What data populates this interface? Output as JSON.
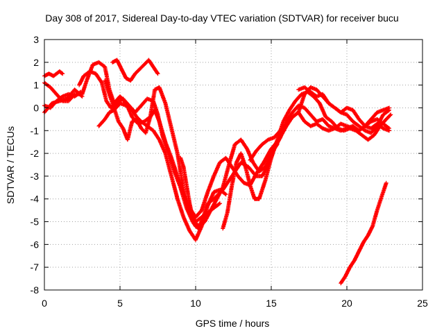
{
  "chart_data": {
    "type": "scatter",
    "title": "Day 308 of 2017, Sidereal Day-to-day VTEC variation (SDTVAR) for receiver bucu",
    "xlabel": "GPS time / hours",
    "ylabel": "SDTVAR / TECUs",
    "xlim": [
      0,
      25
    ],
    "ylim": [
      -8,
      3
    ],
    "xticks": [
      "0",
      "5",
      "10",
      "15",
      "20",
      "25"
    ],
    "yticks": [
      "-8",
      "-7",
      "-6",
      "-5",
      "-4",
      "-3",
      "-2",
      "-1",
      "0",
      "1",
      "2",
      "3"
    ],
    "grid": true,
    "marker": "+",
    "color": "#ff0000",
    "series": [
      {
        "x": [
          0,
          0.3,
          0.6,
          1.0,
          1.2
        ],
        "y": [
          1.4,
          1.5,
          1.4,
          1.6,
          1.5
        ]
      },
      {
        "x": [
          0,
          0.4,
          0.8,
          1.2,
          1.6,
          2.0,
          2.4
        ],
        "y": [
          0.1,
          0.0,
          0.3,
          0.5,
          0.6,
          0.5,
          0.7
        ]
      },
      {
        "x": [
          0,
          0.5,
          1.0,
          1.5,
          2.0,
          2.5
        ],
        "y": [
          -0.2,
          0.2,
          0.3,
          0.4,
          0.8,
          0.5
        ]
      },
      {
        "x": [
          0,
          0.4,
          0.8,
          1.2,
          1.6,
          2.0,
          2.5
        ],
        "y": [
          1.1,
          0.9,
          0.6,
          0.3,
          0.3,
          0.6,
          0.6
        ]
      },
      {
        "x": [
          2.3,
          2.6,
          3.0,
          3.4,
          3.8,
          4.1,
          4.4,
          4.8,
          5.2,
          5.6,
          6.0,
          6.4,
          6.8,
          7.2,
          7.5,
          7.8,
          8.2,
          8.6,
          9.0,
          9.4,
          9.8,
          10.0,
          10.2,
          10.5,
          10.8,
          11.2,
          11.5,
          11.8,
          12.2,
          12.6,
          13.0,
          13.5,
          14.0,
          14.4,
          14.8,
          15.2,
          15.6,
          16.0,
          16.4,
          16.8,
          17.2,
          17.6,
          18.0,
          18.4,
          18.8,
          19.2,
          19.6,
          20.0,
          20.4,
          20.8,
          21.2,
          21.6,
          22.0,
          22.4,
          22.8
        ],
        "y": [
          1.0,
          1.4,
          1.6,
          1.5,
          1.1,
          0.3,
          0.0,
          0.2,
          0.4,
          0.1,
          -0.2,
          0.1,
          0.4,
          0.3,
          -0.3,
          -1.2,
          -2.0,
          -2.8,
          -3.5,
          -4.4,
          -5.0,
          -5.2,
          -5.3,
          -4.8,
          -4.2,
          -4.0,
          -3.8,
          -3.6,
          -3.2,
          -2.8,
          -2.4,
          -2.6,
          -3.0,
          -3.0,
          -2.5,
          -1.8,
          -1.3,
          -0.6,
          -0.2,
          0.1,
          0.0,
          -0.3,
          -0.6,
          -0.5,
          -0.8,
          -0.9,
          -0.7,
          -0.8,
          -0.9,
          -1.0,
          -0.8,
          -0.9,
          -0.7,
          -0.9,
          -1.0
        ]
      },
      {
        "x": [
          2.5,
          2.8,
          3.2,
          3.6,
          4.0,
          4.3,
          4.6,
          5.0,
          5.4,
          5.8,
          6.2,
          6.6,
          7.0,
          7.3,
          7.6,
          8.0,
          8.4,
          8.8,
          9.2,
          9.6,
          10.0,
          10.4,
          10.8,
          11.2,
          11.6,
          12.0,
          12.4,
          12.8,
          13.2,
          13.6,
          14.0,
          14.5,
          15.0,
          15.5,
          16.0,
          16.4,
          16.8,
          17.2,
          17.6,
          18.0,
          18.4,
          18.8,
          19.2,
          19.6,
          20.0,
          20.4,
          20.8,
          21.2,
          21.6,
          22.0,
          22.4,
          22.8
        ],
        "y": [
          0.6,
          1.2,
          1.9,
          2.0,
          1.8,
          0.8,
          0.2,
          0.5,
          0.2,
          -0.4,
          -0.7,
          -0.6,
          -0.4,
          -0.1,
          -0.6,
          -1.5,
          -2.2,
          -3.0,
          -3.8,
          -4.4,
          -4.8,
          -4.5,
          -3.7,
          -3.0,
          -2.4,
          -2.2,
          -2.6,
          -3.0,
          -3.3,
          -3.4,
          -2.9,
          -2.4,
          -1.8,
          -1.4,
          -0.8,
          -0.4,
          -0.2,
          -0.6,
          -0.8,
          -0.7,
          -0.9,
          -1.0,
          -0.9,
          -1.0,
          -0.9,
          -0.8,
          -1.0,
          -0.8,
          -0.6,
          -0.5,
          -0.7,
          -0.9
        ]
      },
      {
        "x": [
          3.6,
          4.0,
          4.3,
          4.6,
          5.0,
          5.4,
          5.8,
          6.1,
          6.4,
          6.8,
          7.2,
          7.6,
          8.0,
          8.4,
          8.8,
          9.2,
          9.6,
          10.0,
          10.4,
          10.8,
          11.2,
          11.6,
          12.0
        ],
        "y": [
          -0.8,
          -0.5,
          -0.2,
          -0.1,
          0.2,
          0.1,
          -0.1,
          -0.4,
          -0.6,
          -0.8,
          -1.0,
          -1.4,
          -2.0,
          -3.0,
          -4.0,
          -4.8,
          -5.4,
          -5.8,
          -5.2,
          -4.3,
          -3.7,
          -3.6,
          -3.8
        ]
      },
      {
        "x": [
          4.0,
          4.3,
          4.6,
          4.9,
          5.2,
          5.5,
          5.8,
          6.1,
          6.4,
          6.7,
          7.0,
          7.3,
          7.6,
          8.0,
          8.4,
          8.8,
          9.2,
          9.6,
          10.0,
          10.4,
          10.8,
          11.2,
          11.6
        ],
        "y": [
          1.2,
          0.6,
          0.0,
          -0.6,
          -0.9,
          -1.4,
          -0.6,
          -0.5,
          -0.9,
          -1.1,
          -0.4,
          0.8,
          0.9,
          0.2,
          -0.9,
          -2.0,
          -3.6,
          -4.6,
          -5.0,
          -4.8,
          -4.6,
          -4.4,
          -4.2
        ]
      },
      {
        "x": [
          4.5,
          4.8,
          5.1,
          5.4,
          5.7,
          6.0,
          6.3,
          6.6,
          6.9,
          7.2,
          7.5
        ],
        "y": [
          2.0,
          2.1,
          1.7,
          1.3,
          1.2,
          1.5,
          1.7,
          1.9,
          2.1,
          1.8,
          1.5
        ]
      },
      {
        "x": [
          9.0,
          9.2,
          9.4,
          9.6,
          9.8,
          10.0,
          10.3,
          10.6,
          11.0,
          11.4,
          11.8,
          12.2,
          12.6,
          13.0,
          13.4,
          13.8,
          14.2,
          14.6,
          15.0,
          15.4
        ],
        "y": [
          -2.2,
          -2.6,
          -3.4,
          -4.2,
          -4.8,
          -5.1,
          -5.2,
          -5.0,
          -4.5,
          -4.0,
          -3.5,
          -2.5,
          -1.6,
          -1.4,
          -1.8,
          -2.4,
          -2.8,
          -2.6,
          -2.0,
          -1.6
        ]
      },
      {
        "x": [
          11.8,
          12.1,
          12.4,
          12.7,
          13.0,
          13.3,
          13.6,
          13.9,
          14.2,
          14.6,
          15.0,
          15.4,
          15.8,
          16.2,
          16.6,
          17.0,
          17.4,
          17.8,
          18.2,
          18.6,
          19.0,
          19.4,
          19.8,
          20.2,
          20.6,
          21.0,
          21.4,
          21.8,
          22.2,
          22.6,
          22.9
        ],
        "y": [
          -5.3,
          -4.6,
          -3.4,
          -2.4,
          -2.0,
          -2.6,
          -3.4,
          -4.0,
          -4.0,
          -3.2,
          -2.2,
          -1.4,
          -0.6,
          -0.1,
          0.3,
          0.6,
          0.7,
          0.5,
          0.2,
          -0.4,
          -0.6,
          -0.9,
          -1.0,
          -0.9,
          -1.0,
          -1.2,
          -1.4,
          -1.2,
          -0.8,
          -0.5,
          -0.3
        ]
      },
      {
        "x": [
          13.6,
          14.0,
          14.4,
          14.8,
          15.2,
          15.6,
          16.0,
          16.4,
          16.8,
          17.2,
          17.6,
          18.0,
          18.4,
          18.8,
          19.2,
          19.6,
          20.0,
          20.4,
          20.8,
          21.2,
          21.6,
          22.0,
          22.4,
          22.8
        ],
        "y": [
          -2.3,
          -1.9,
          -1.6,
          -1.4,
          -1.3,
          -1.0,
          -0.7,
          -0.4,
          -0.2,
          0.6,
          0.9,
          0.8,
          0.5,
          0.2,
          0.0,
          -0.2,
          -0.3,
          -0.6,
          -0.8,
          -1.0,
          -1.1,
          -0.8,
          -0.3,
          -0.1
        ]
      },
      {
        "x": [
          16.8,
          17.2,
          17.6,
          18.0,
          18.4,
          18.8,
          19.2,
          19.6,
          20.0,
          20.4,
          20.8,
          21.2,
          21.6,
          22.0,
          22.4,
          22.8
        ],
        "y": [
          0.8,
          0.9,
          0.7,
          0.5,
          0.6,
          0.2,
          0.0,
          -0.2,
          0.0,
          -0.1,
          -0.5,
          -0.8,
          -0.5,
          -0.2,
          -0.1,
          0.0
        ]
      },
      {
        "x": [
          19.6,
          19.9,
          20.2,
          20.5,
          20.8,
          21.1,
          21.4,
          21.7,
          22.0,
          22.3,
          22.6
        ],
        "y": [
          -7.7,
          -7.4,
          -7.0,
          -6.7,
          -6.3,
          -5.9,
          -5.6,
          -5.2,
          -4.5,
          -3.9,
          -3.3
        ]
      }
    ]
  }
}
